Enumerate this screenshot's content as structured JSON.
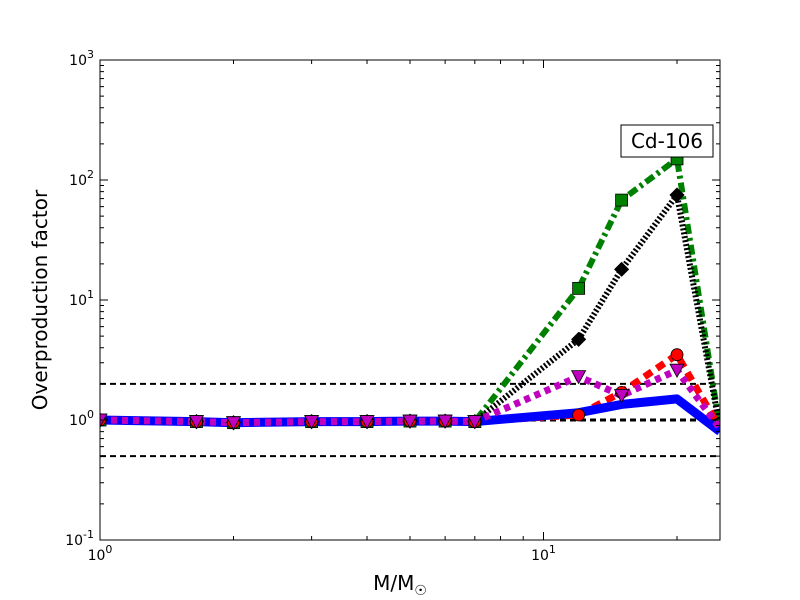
{
  "chart_data": {
    "type": "line",
    "title": "",
    "xlabel": "M/M",
    "xlabel_sub": "☉",
    "ylabel": "Overproduction factor",
    "xscale": "log",
    "yscale": "log",
    "xlim": [
      1,
      25
    ],
    "ylim": [
      0.1,
      1000
    ],
    "x_ticks": [
      {
        "value": 1,
        "base": "10",
        "exp": "0"
      },
      {
        "value": 10,
        "base": "10",
        "exp": "1"
      }
    ],
    "y_ticks": [
      {
        "value": 0.1,
        "base": "10",
        "exp": "-1"
      },
      {
        "value": 1,
        "base": "10",
        "exp": "0"
      },
      {
        "value": 10,
        "base": "10",
        "exp": "1"
      },
      {
        "value": 100,
        "base": "10",
        "exp": "2"
      },
      {
        "value": 1000,
        "base": "10",
        "exp": "3"
      }
    ],
    "annotation": "Cd-106",
    "grid": false,
    "reference_lines": [
      {
        "y": 0.5,
        "style": "dashed",
        "color": "#000000"
      },
      {
        "y": 1.0,
        "style": "dashed-thick",
        "color": "#000000"
      },
      {
        "y": 2.0,
        "style": "dashed",
        "color": "#000000"
      }
    ],
    "series": [
      {
        "color": "#008000",
        "style": "dashdot",
        "marker": "square",
        "x": [
          1,
          1.65,
          2,
          3,
          4,
          5,
          6,
          7,
          12,
          15,
          20,
          25
        ],
        "y": [
          1.0,
          0.97,
          0.95,
          0.97,
          0.97,
          0.98,
          0.98,
          0.97,
          12.5,
          68,
          150,
          0.85
        ],
        "marker_x": [
          1,
          1.65,
          2,
          3,
          4,
          5,
          6,
          7,
          12,
          15,
          20
        ],
        "marker_y": [
          1.0,
          0.97,
          0.95,
          0.97,
          0.97,
          0.98,
          0.98,
          0.97,
          12.5,
          68,
          150
        ]
      },
      {
        "color": "#000000",
        "style": "dotted",
        "marker": "diamond",
        "x": [
          1,
          1.65,
          2,
          3,
          4,
          5,
          6,
          7,
          12,
          15,
          20,
          25
        ],
        "y": [
          1.0,
          0.97,
          0.95,
          0.97,
          0.97,
          0.98,
          0.98,
          0.97,
          4.7,
          18,
          75,
          0.85
        ],
        "marker_x": [
          1,
          1.65,
          2,
          3,
          4,
          5,
          6,
          7,
          12,
          15,
          20
        ],
        "marker_y": [
          1.0,
          0.97,
          0.95,
          0.97,
          0.97,
          0.98,
          0.98,
          0.97,
          4.7,
          18,
          75
        ]
      },
      {
        "color": "#ff0000",
        "style": "dashed",
        "marker": "circle",
        "x": [
          1,
          1.65,
          2,
          3,
          4,
          5,
          6,
          7,
          12,
          15,
          20,
          25
        ],
        "y": [
          1.0,
          0.97,
          0.95,
          0.97,
          0.97,
          0.98,
          0.98,
          0.97,
          1.1,
          1.7,
          3.5,
          0.85
        ],
        "marker_x": [
          1,
          1.65,
          2,
          3,
          4,
          5,
          6,
          7,
          12,
          15,
          20
        ],
        "marker_y": [
          1.0,
          0.97,
          0.95,
          0.97,
          0.97,
          0.98,
          0.98,
          0.97,
          1.1,
          1.7,
          3.5
        ]
      },
      {
        "color": "#0000ff",
        "style": "solid",
        "marker": "none",
        "x": [
          1,
          1.65,
          2,
          3,
          4,
          5,
          6,
          7,
          12,
          15,
          20,
          25
        ],
        "y": [
          1.0,
          0.97,
          0.95,
          0.97,
          0.97,
          0.98,
          0.98,
          0.97,
          1.15,
          1.35,
          1.5,
          0.8
        ],
        "marker_x": [],
        "marker_y": []
      },
      {
        "color": "#bf00bf",
        "style": "dotted-thick",
        "marker": "triangle-down",
        "x": [
          1,
          1.65,
          2,
          3,
          4,
          5,
          6,
          7,
          12,
          15,
          20,
          25
        ],
        "y": [
          1.0,
          0.97,
          0.95,
          0.97,
          0.97,
          0.98,
          0.98,
          0.97,
          2.3,
          1.6,
          2.6,
          0.85
        ],
        "marker_x": [
          1,
          1.65,
          2,
          3,
          4,
          5,
          6,
          7,
          12,
          15,
          20
        ],
        "marker_y": [
          1.0,
          0.97,
          0.95,
          0.97,
          0.97,
          0.98,
          0.98,
          0.97,
          2.3,
          1.6,
          2.6
        ]
      }
    ]
  }
}
